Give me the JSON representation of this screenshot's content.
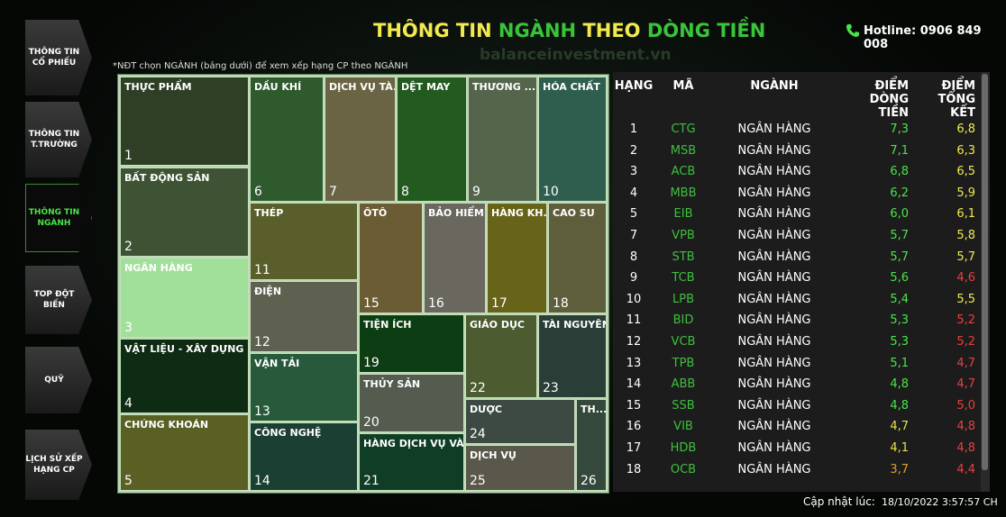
{
  "nav": [
    "THÔNG TIN CỔ PHIẾU",
    "THÔNG TIN T.TRƯỜNG",
    "THÔNG TIN NGÀNH",
    "TOP ĐỘT BIẾN",
    "QUỸ",
    "LỊCH SỬ XẾP HẠNG CP"
  ],
  "header": {
    "title": [
      "THÔNG TIN",
      "NGÀNH",
      "THEO",
      "DÒNG TIỀN"
    ],
    "watermark": "balanceinvestment.vn",
    "hotline": "Hotline: 0906 849 008"
  },
  "note": "*NĐT chọn NGÀNH (bảng dưới) để xem xếp hạng CP theo NGÀNH",
  "treemap": [
    {
      "label": "THỰC PHẨM",
      "rank": "1",
      "color": "#2f3f25"
    },
    {
      "label": "BẤT ĐỘNG SẢN",
      "rank": "2",
      "color": "#3d5334"
    },
    {
      "label": "NGÂN HÀNG",
      "rank": "3",
      "color": "#a0e09a"
    },
    {
      "label": "VẬT LIỆU - XÂY DỰNG",
      "rank": "4",
      "color": "#0e2b13"
    },
    {
      "label": "CHỨNG KHOÁN",
      "rank": "5",
      "color": "#5a6023"
    },
    {
      "label": "DẦU KHÍ",
      "rank": "6",
      "color": "#2e5a2d"
    },
    {
      "label": "DỊCH VỤ TÀ...",
      "rank": "7",
      "color": "#6b6444"
    },
    {
      "label": "DỆT MAY",
      "rank": "8",
      "color": "#225a1f"
    },
    {
      "label": "THƯƠNG ...",
      "rank": "9",
      "color": "#55654c"
    },
    {
      "label": "HÓA CHẤT",
      "rank": "10",
      "color": "#2f5e4e"
    },
    {
      "label": "THÉP",
      "rank": "11",
      "color": "#5a5e2a"
    },
    {
      "label": "ĐIỆN",
      "rank": "12",
      "color": "#5e6150"
    },
    {
      "label": "VẬN TẢI",
      "rank": "13",
      "color": "#275a3a"
    },
    {
      "label": "CÔNG NGHỆ",
      "rank": "14",
      "color": "#1c3f33"
    },
    {
      "label": "ÔTÔ",
      "rank": "15",
      "color": "#6b5c33"
    },
    {
      "label": "BẢO HIỂM",
      "rank": "16",
      "color": "#69675e"
    },
    {
      "label": "HÀNG KH...",
      "rank": "17",
      "color": "#676419"
    },
    {
      "label": "CAO SU",
      "rank": "18",
      "color": "#5f5e3c"
    },
    {
      "label": "TIỆN ÍCH",
      "rank": "19",
      "color": "#0d3d12"
    },
    {
      "label": "THỦY SẢN",
      "rank": "20",
      "color": "#545b4f"
    },
    {
      "label": "HÀNG DỊCH VỤ VÀ ...",
      "rank": "21",
      "color": "#0f3d25"
    },
    {
      "label": "GIÁO DỤC",
      "rank": "22",
      "color": "#4c5b30"
    },
    {
      "label": "TÀI NGUYÊN",
      "rank": "23",
      "color": "#2a3e37"
    },
    {
      "label": "DƯỢC",
      "rank": "24",
      "color": "#3d4a44"
    },
    {
      "label": "DỊCH VỤ",
      "rank": "25",
      "color": "#59584a"
    },
    {
      "label": "TH...",
      "rank": "26",
      "color": "#35483c"
    }
  ],
  "table": {
    "headers": [
      "HẠNG",
      "MÃ",
      "NGÀNH",
      "ĐIỂM DÒNG TIỀN",
      "ĐIỂM TỔNG KẾT"
    ],
    "rows": [
      [
        "1",
        "CTG",
        "NGÂN HÀNG",
        "7,3",
        "6,8"
      ],
      [
        "2",
        "MSB",
        "NGÂN HÀNG",
        "7,1",
        "6,3"
      ],
      [
        "3",
        "ACB",
        "NGÂN HÀNG",
        "6,8",
        "6,5"
      ],
      [
        "4",
        "MBB",
        "NGÂN HÀNG",
        "6,2",
        "5,9"
      ],
      [
        "5",
        "EIB",
        "NGÂN HÀNG",
        "6,0",
        "6,1"
      ],
      [
        "7",
        "VPB",
        "NGÂN HÀNG",
        "5,7",
        "5,8"
      ],
      [
        "8",
        "STB",
        "NGÂN HÀNG",
        "5,7",
        "5,7"
      ],
      [
        "9",
        "TCB",
        "NGÂN HÀNG",
        "5,6",
        "4,6"
      ],
      [
        "10",
        "LPB",
        "NGÂN HÀNG",
        "5,4",
        "5,5"
      ],
      [
        "11",
        "BID",
        "NGÂN HÀNG",
        "5,3",
        "5,2"
      ],
      [
        "12",
        "VCB",
        "NGÂN HÀNG",
        "5,3",
        "5,2"
      ],
      [
        "13",
        "TPB",
        "NGÂN HÀNG",
        "5,1",
        "4,7"
      ],
      [
        "14",
        "ABB",
        "NGÂN HÀNG",
        "4,8",
        "4,7"
      ],
      [
        "15",
        "SSB",
        "NGÂN HÀNG",
        "4,8",
        "5,0"
      ],
      [
        "16",
        "VIB",
        "NGÂN HÀNG",
        "4,7",
        "4,8"
      ],
      [
        "17",
        "HDB",
        "NGÂN HÀNG",
        "4,1",
        "4,8"
      ],
      [
        "18",
        "OCB",
        "NGÂN HÀNG",
        "3,7",
        "4,4"
      ]
    ]
  },
  "footer": {
    "label": "Cập nhật lúc:",
    "time": "18/10/2022 3:57:57 CH"
  }
}
